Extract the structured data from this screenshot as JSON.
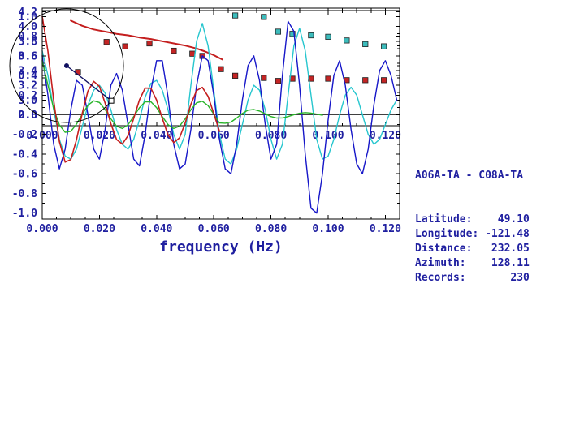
{
  "info_panel": {
    "title": "A06A-TA - C08A-TA",
    "lines": [
      "Latitude:    49.10",
      "Longitude: -121.48",
      "Distance:   232.05",
      "Azimuth:    128.11",
      "Records:       230"
    ]
  },
  "azimuth_diagram": {
    "azimuth_deg": 128.11
  },
  "colors": {
    "text": "#2020a0",
    "axis": "#000000"
  },
  "chart_data": [
    {
      "type": "scatter",
      "title": "",
      "xlabel": "",
      "ylabel": "",
      "xlim": [
        0,
        0.125
      ],
      "ylim": [
        2.65,
        4.25
      ],
      "xticks": [
        0.0,
        0.02,
        0.04,
        0.06,
        0.08,
        0.1,
        0.12
      ],
      "xtick_labels": [
        "0.000",
        "0.020",
        "0.040",
        "0.060",
        "0.080",
        "0.100",
        "0.120"
      ],
      "yticks": [
        2.8,
        3.0,
        3.2,
        3.4,
        3.6,
        3.8,
        4.0,
        4.2
      ],
      "ytick_labels": [
        "2.8",
        "3.0",
        "3.2",
        "3.4",
        "3.6",
        "3.8",
        "4.0",
        "4.2"
      ],
      "xminor": 0.005,
      "yminor": 0.1,
      "series": [
        {
          "name": "predicted-dispersion-curve",
          "type": "line",
          "color": "#c41e1e",
          "width": 2,
          "points": [
            [
              0.01,
              4.08
            ],
            [
              0.014,
              4.01
            ],
            [
              0.018,
              3.96
            ],
            [
              0.022,
              3.93
            ],
            [
              0.026,
              3.9
            ],
            [
              0.03,
              3.88
            ],
            [
              0.034,
              3.85
            ],
            [
              0.038,
              3.83
            ],
            [
              0.042,
              3.8
            ],
            [
              0.046,
              3.77
            ],
            [
              0.05,
              3.74
            ],
            [
              0.054,
              3.7
            ],
            [
              0.057,
              3.66
            ],
            [
              0.06,
              3.61
            ],
            [
              0.062,
              3.57
            ],
            [
              0.063,
              3.55
            ]
          ]
        },
        {
          "name": "group-velocity-picks",
          "type": "scatter",
          "marker": "square",
          "color": "#c42424",
          "points": [
            [
              0.0125,
              3.38
            ],
            [
              0.0225,
              3.79
            ],
            [
              0.029,
              3.73
            ],
            [
              0.0375,
              3.77
            ],
            [
              0.046,
              3.67
            ],
            [
              0.0525,
              3.63
            ],
            [
              0.056,
              3.6
            ],
            [
              0.0625,
              3.42
            ],
            [
              0.0675,
              3.33
            ],
            [
              0.0775,
              3.3
            ],
            [
              0.0825,
              3.26
            ],
            [
              0.0875,
              3.29
            ],
            [
              0.094,
              3.29
            ],
            [
              0.1,
              3.29
            ],
            [
              0.1065,
              3.27
            ],
            [
              0.113,
              3.27
            ],
            [
              0.1195,
              3.27
            ]
          ]
        },
        {
          "name": "phase-velocity-picks",
          "type": "scatter",
          "marker": "square",
          "color": "#3cbcbc",
          "points": [
            [
              0.0675,
              4.15
            ],
            [
              0.0775,
              4.13
            ],
            [
              0.0825,
              3.93
            ],
            [
              0.0875,
              3.9
            ],
            [
              0.094,
              3.88
            ],
            [
              0.1,
              3.86
            ],
            [
              0.1065,
              3.81
            ],
            [
              0.113,
              3.76
            ],
            [
              0.1195,
              3.73
            ]
          ]
        }
      ]
    },
    {
      "type": "line",
      "title": "",
      "xlabel": "frequency (Hz)",
      "ylabel": "",
      "xlim": [
        0,
        0.125
      ],
      "ylim": [
        -1.06,
        1.06
      ],
      "zero_line": 0.0,
      "xticks": [
        0.0,
        0.02,
        0.04,
        0.06,
        0.08,
        0.1,
        0.12
      ],
      "xtick_labels": [
        "0.000",
        "0.020",
        "0.040",
        "0.060",
        "0.080",
        "0.100",
        "0.120"
      ],
      "yticks": [
        -1.0,
        -0.8,
        -0.6,
        -0.4,
        -0.2,
        0.0,
        0.2,
        0.4,
        0.6,
        0.8,
        1.0
      ],
      "ytick_labels": [
        "-1.0",
        "-0.8",
        "-0.6",
        "-0.4",
        "-0.2",
        "0.0",
        "0.2",
        "0.4",
        "0.6",
        "0.8",
        "1.0"
      ],
      "xminor": 0.005,
      "yminor": 0.1,
      "series": [
        {
          "name": "cross-spectrum-cyan",
          "type": "line",
          "color": "#26c6ce",
          "width": 1.4,
          "x_start": 0,
          "x_step": 0.002,
          "values": [
            0.65,
            0.4,
            0.05,
            -0.25,
            -0.42,
            -0.45,
            -0.35,
            -0.12,
            0.1,
            0.25,
            0.3,
            0.22,
            0.05,
            -0.15,
            -0.3,
            -0.35,
            -0.25,
            -0.05,
            0.18,
            0.32,
            0.35,
            0.25,
            0.05,
            -0.2,
            -0.35,
            -0.2,
            0.3,
            0.75,
            0.93,
            0.7,
            0.25,
            -0.2,
            -0.45,
            -0.5,
            -0.35,
            -0.1,
            0.15,
            0.3,
            0.25,
            0.05,
            -0.25,
            -0.45,
            -0.3,
            0.2,
            0.7,
            0.88,
            0.65,
            0.2,
            -0.25,
            -0.45,
            -0.42,
            -0.25,
            0.0,
            0.2,
            0.28,
            0.2,
            0.0,
            -0.2,
            -0.3,
            -0.25,
            -0.1,
            0.05,
            0.15
          ]
        },
        {
          "name": "cross-spectrum-blue",
          "type": "line",
          "color": "#1616c8",
          "width": 1.4,
          "x_start": 0,
          "x_step": 0.002,
          "values": [
            0.6,
            0.2,
            -0.3,
            -0.55,
            -0.35,
            0.05,
            0.35,
            0.3,
            0.0,
            -0.35,
            -0.45,
            -0.15,
            0.3,
            0.42,
            0.25,
            -0.1,
            -0.45,
            -0.52,
            -0.2,
            0.25,
            0.55,
            0.55,
            0.18,
            -0.3,
            -0.55,
            -0.5,
            -0.15,
            0.3,
            0.6,
            0.55,
            0.2,
            -0.25,
            -0.55,
            -0.6,
            -0.3,
            0.15,
            0.5,
            0.6,
            0.35,
            -0.1,
            -0.45,
            -0.3,
            0.4,
            0.95,
            0.85,
            0.3,
            -0.4,
            -0.95,
            -1.0,
            -0.6,
            -0.05,
            0.4,
            0.55,
            0.3,
            -0.15,
            -0.5,
            -0.6,
            -0.35,
            0.1,
            0.45,
            0.55,
            0.4,
            0.15
          ]
        },
        {
          "name": "cross-spectrum-green",
          "type": "line",
          "color": "#28b428",
          "width": 1.4,
          "x_start": 0,
          "x_step": 0.002,
          "values": [
            0.55,
            0.303,
            0.061,
            -0.104,
            -0.178,
            -0.168,
            -0.095,
            0.006,
            0.097,
            0.142,
            0.125,
            0.053,
            -0.041,
            -0.116,
            -0.139,
            -0.101,
            -0.018,
            0.073,
            0.132,
            0.132,
            0.073,
            -0.018,
            -0.101,
            -0.139,
            -0.116,
            -0.041,
            0.052,
            0.122,
            0.138,
            0.093,
            0.006,
            -0.083,
            -0.086,
            -0.074,
            -0.033,
            0.014,
            0.047,
            0.054,
            0.038,
            0.009,
            -0.018,
            -0.033,
            -0.032,
            -0.018,
            0.001,
            0.016,
            0.022,
            0.017,
            0.007,
            -0.005
          ]
        },
        {
          "name": "cross-spectrum-red",
          "type": "line",
          "color": "#c41e1e",
          "width": 1.6,
          "x_start": 0,
          "x_step": 0.002,
          "values": [
            1.0,
            0.647,
            0.148,
            -0.272,
            -0.481,
            -0.455,
            -0.253,
            0.016,
            0.242,
            0.34,
            0.289,
            0.119,
            -0.091,
            -0.252,
            -0.298,
            -0.213,
            -0.037,
            0.152,
            0.271,
            0.27,
            0.149,
            -0.036,
            -0.205,
            -0.283,
            -0.235,
            -0.083,
            0.106,
            0.247,
            0.279,
            0.187,
            0.012,
            -0.168
          ]
        }
      ]
    }
  ]
}
